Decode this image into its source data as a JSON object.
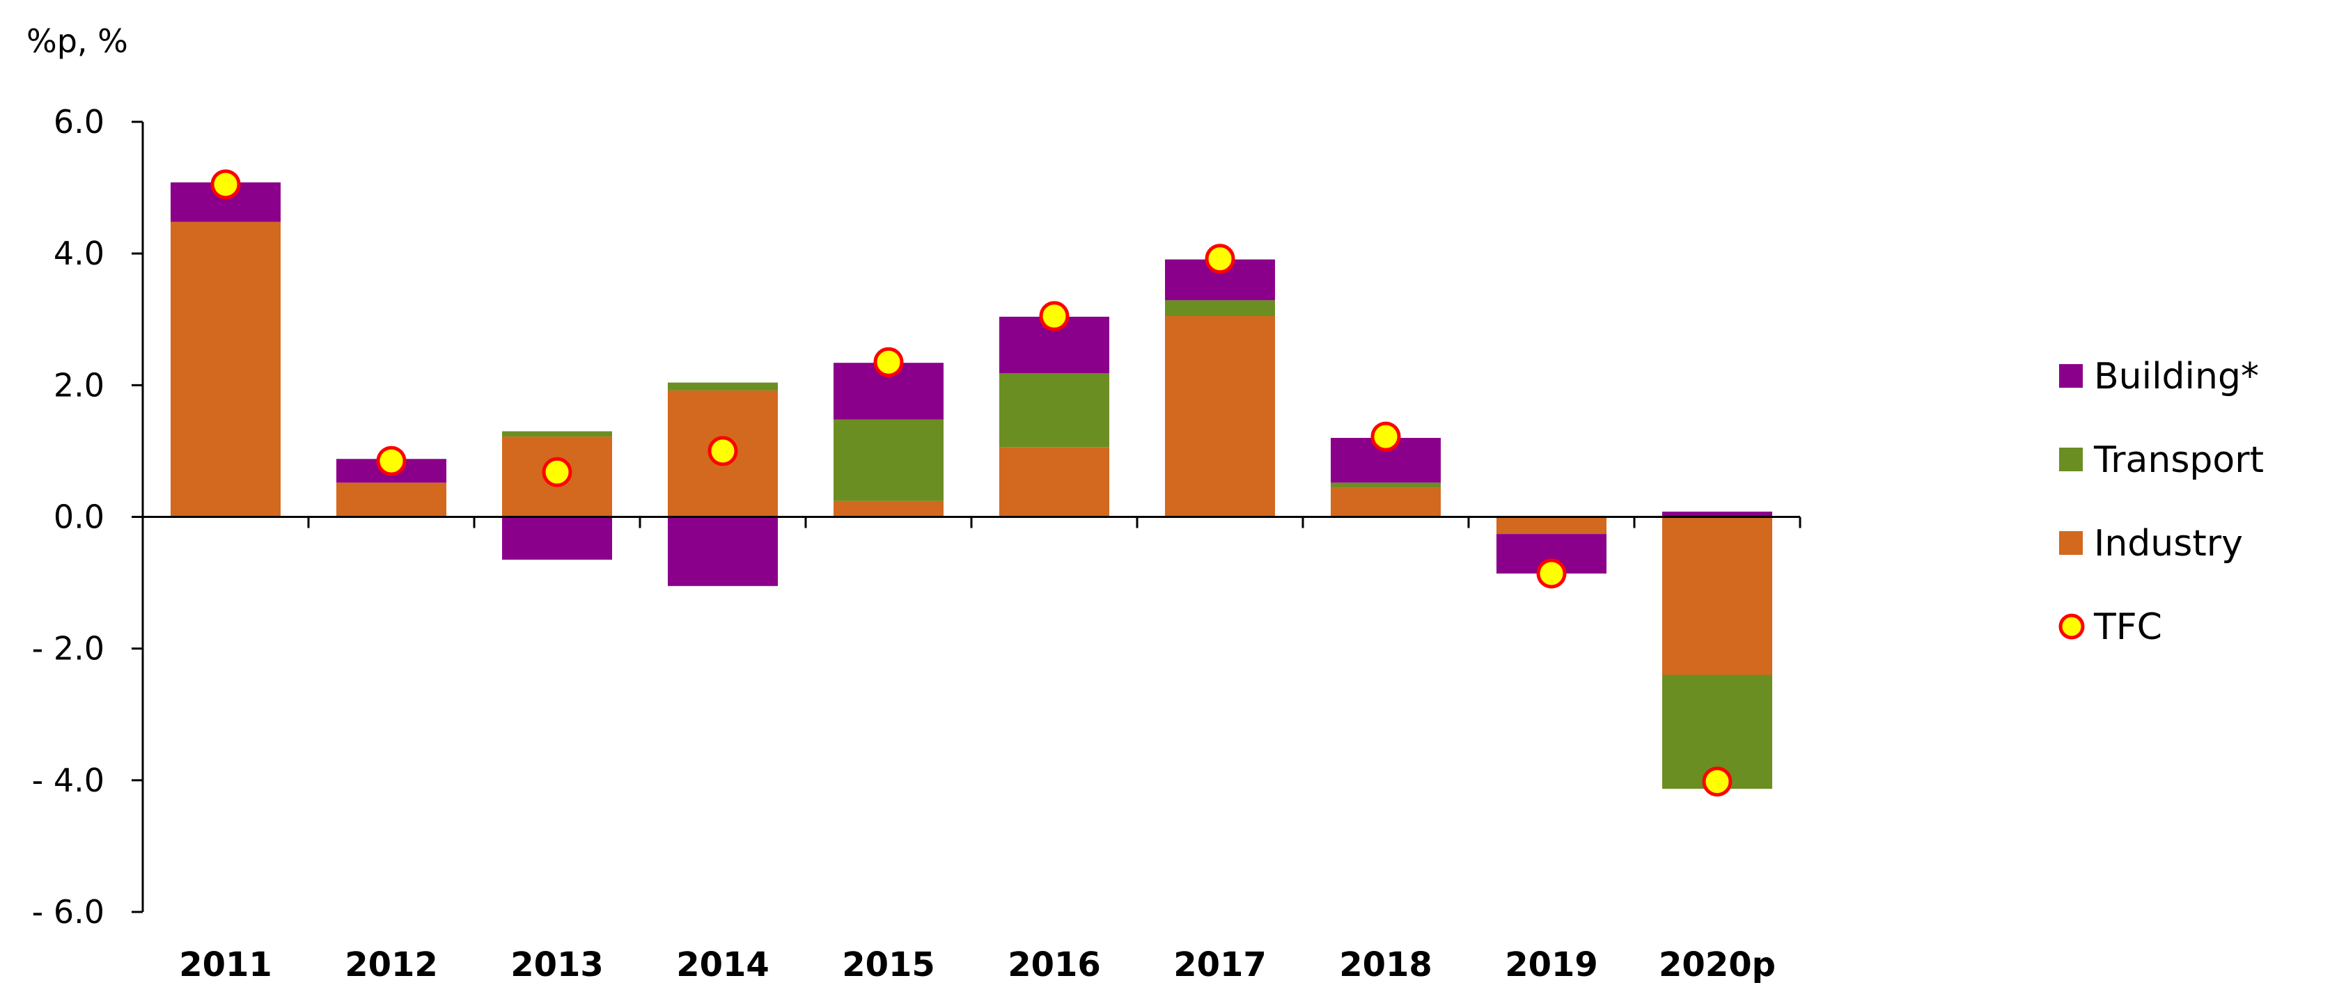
{
  "chart_data": {
    "type": "bar",
    "stacked": true,
    "unit_label": "%p, %",
    "categories": [
      "2011",
      "2012",
      "2013",
      "2014",
      "2015",
      "2016",
      "2017",
      "2018",
      "2019",
      "2020p"
    ],
    "ylim": [
      -6.0,
      6.0
    ],
    "yticks": [
      6.0,
      4.0,
      2.0,
      0.0,
      -2.0,
      -4.0,
      -6.0
    ],
    "ytick_labels": [
      "6.0",
      "4.0",
      "2.0",
      "0.0",
      "- 2.0",
      "- 4.0",
      "- 6.0"
    ],
    "legend_position": "right",
    "series": [
      {
        "name": "Industry",
        "color": "#d2691e",
        "values": [
          4.48,
          0.52,
          1.22,
          1.92,
          0.24,
          1.06,
          3.05,
          0.44,
          -0.26,
          -2.4
        ]
      },
      {
        "name": "Transport",
        "color": "#6b8e23",
        "values": [
          0.0,
          0.0,
          0.08,
          0.12,
          1.24,
          1.12,
          0.24,
          0.08,
          0.0,
          -1.73
        ]
      },
      {
        "name": "Building*",
        "color": "#8b008b",
        "values": [
          0.6,
          0.36,
          -0.65,
          -1.05,
          0.86,
          0.86,
          0.62,
          0.68,
          -0.6,
          0.08
        ]
      }
    ],
    "markers": {
      "name": "TFC",
      "fill": "#ffff00",
      "stroke": "#ff0000",
      "values": [
        5.05,
        0.85,
        0.68,
        1.0,
        2.35,
        3.05,
        3.92,
        1.22,
        -0.86,
        -4.02
      ]
    },
    "legend_order": [
      "Building*",
      "Transport",
      "Industry",
      "TFC"
    ]
  }
}
